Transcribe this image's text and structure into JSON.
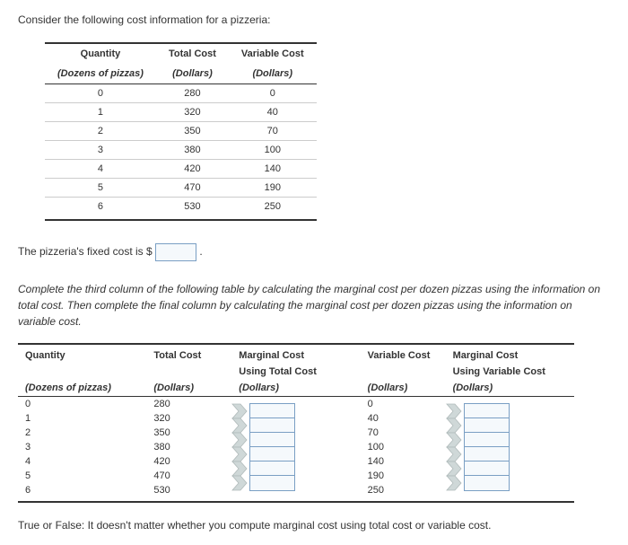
{
  "intro": "Consider the following cost information for a pizzeria:",
  "table1": {
    "col_qty_top": "Quantity",
    "col_qty_sub": "(Dozens of pizzas)",
    "col_tc_top": "Total Cost",
    "col_tc_sub": "(Dollars)",
    "col_vc_top": "Variable Cost",
    "col_vc_sub": "(Dollars)",
    "rows": [
      {
        "q": "0",
        "tc": "280",
        "vc": "0"
      },
      {
        "q": "1",
        "tc": "320",
        "vc": "40"
      },
      {
        "q": "2",
        "tc": "350",
        "vc": "70"
      },
      {
        "q": "3",
        "tc": "380",
        "vc": "100"
      },
      {
        "q": "4",
        "tc": "420",
        "vc": "140"
      },
      {
        "q": "5",
        "tc": "470",
        "vc": "190"
      },
      {
        "q": "6",
        "tc": "530",
        "vc": "250"
      }
    ]
  },
  "fixed_cost": {
    "prefix": "The pizzeria's fixed cost is",
    "currency": "$",
    "suffix": "."
  },
  "instr": "Complete the third column of the following table by calculating the marginal cost per dozen pizzas using the information on total cost. Then complete the final column by calculating the marginal cost per dozen pizzas using the information on variable cost.",
  "table2": {
    "col_qty_top": "Quantity",
    "col_qty_sub": "(Dozens of pizzas)",
    "col_tc_top": "Total Cost",
    "col_tc_sub": "(Dollars)",
    "col_mc1_top": "Marginal Cost",
    "col_mc1_mid": "Using Total Cost",
    "col_mc1_sub": "(Dollars)",
    "col_vc_top": "Variable Cost",
    "col_vc_sub": "(Dollars)",
    "col_mc2_top": "Marginal Cost",
    "col_mc2_mid": "Using Variable Cost",
    "col_mc2_sub": "(Dollars)",
    "rows": [
      {
        "q": "0",
        "tc": "280",
        "vc": "0"
      },
      {
        "q": "1",
        "tc": "320",
        "vc": "40"
      },
      {
        "q": "2",
        "tc": "350",
        "vc": "70"
      },
      {
        "q": "3",
        "tc": "380",
        "vc": "100"
      },
      {
        "q": "4",
        "tc": "420",
        "vc": "140"
      },
      {
        "q": "5",
        "tc": "470",
        "vc": "190"
      },
      {
        "q": "6",
        "tc": "530",
        "vc": "250"
      }
    ]
  },
  "tf_line": "True or False: It doesn't matter whether you compute marginal cost using total cost or variable cost.",
  "style": {
    "arrow_color": "#cfd8d8",
    "arrow_stroke": "#b0baba"
  }
}
